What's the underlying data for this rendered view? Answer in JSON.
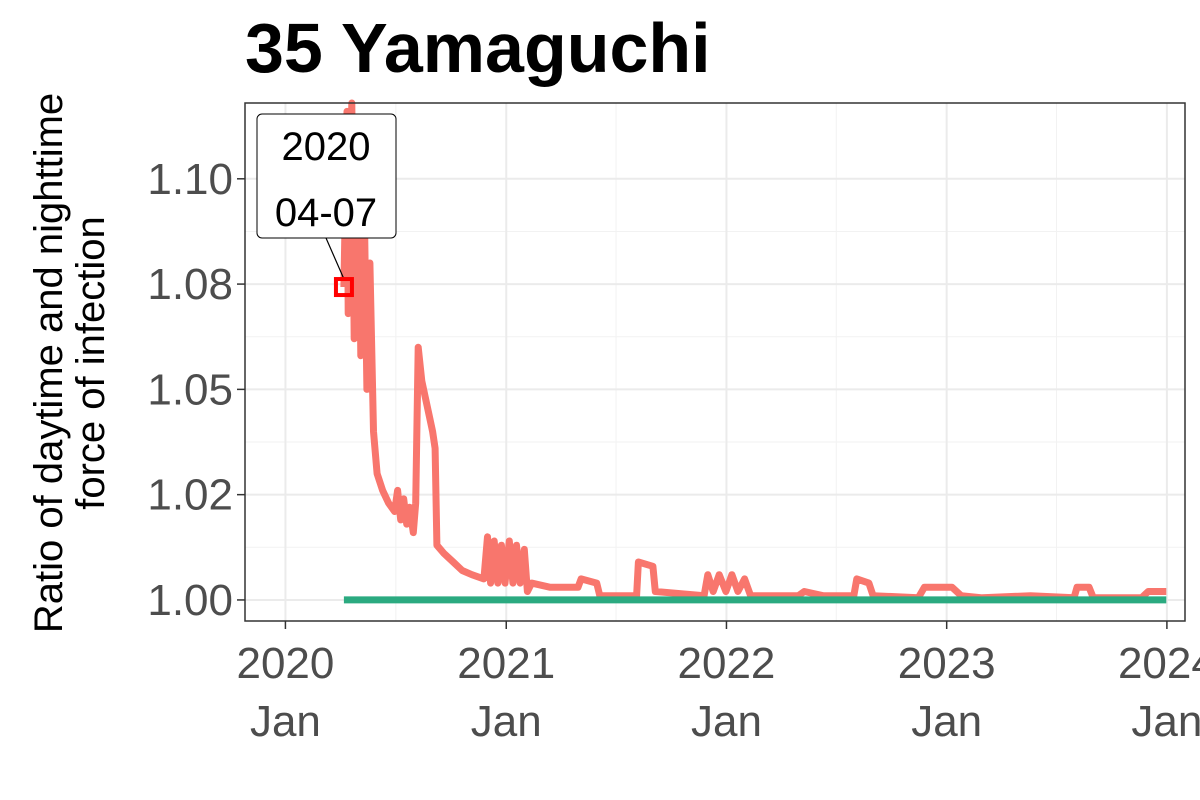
{
  "chart_data": {
    "type": "line",
    "title": "35 Yamaguchi",
    "ylabel_line1": "Ratio of daytime and nighttime",
    "ylabel_line2": "force of infection",
    "xlabel": "",
    "ylim": [
      0.995,
      1.118
    ],
    "xlim": [
      "2019-10-26",
      "2024-01-31"
    ],
    "y_ticks": [
      {
        "value": 1.0,
        "label": "1.00"
      },
      {
        "value": 1.025,
        "label": "1.02"
      },
      {
        "value": 1.05,
        "label": "1.05"
      },
      {
        "value": 1.075,
        "label": "1.08"
      },
      {
        "value": 1.1,
        "label": "1.10"
      }
    ],
    "x_ticks": [
      {
        "date": "2020-01-01",
        "year": "2020",
        "month": "Jan"
      },
      {
        "date": "2021-01-01",
        "year": "2021",
        "month": "Jan"
      },
      {
        "date": "2022-01-01",
        "year": "2022",
        "month": "Jan"
      },
      {
        "date": "2023-01-01",
        "year": "2023",
        "month": "Jan"
      },
      {
        "date": "2024-01-01",
        "year": "2024",
        "month": "Jan"
      }
    ],
    "grid": true,
    "legend": "none",
    "colors": {
      "ratio": "#F8766D",
      "baseline": "#2BAA80",
      "marker": "#FF0000"
    },
    "series": [
      {
        "color": "#F8766D",
        "points": [
          [
            "2020-04-07",
            1.0743
          ],
          [
            "2020-04-12",
            1.116
          ],
          [
            "2020-04-14",
            1.068
          ],
          [
            "2020-04-20",
            1.118
          ],
          [
            "2020-04-24",
            1.062
          ],
          [
            "2020-05-01",
            1.112
          ],
          [
            "2020-05-05",
            1.058
          ],
          [
            "2020-05-10",
            1.1
          ],
          [
            "2020-05-15",
            1.05
          ],
          [
            "2020-05-20",
            1.08
          ],
          [
            "2020-05-26",
            1.04
          ],
          [
            "2020-06-01",
            1.03
          ],
          [
            "2020-06-10",
            1.026
          ],
          [
            "2020-06-20",
            1.023
          ],
          [
            "2020-06-30",
            1.021
          ],
          [
            "2020-07-05",
            1.026
          ],
          [
            "2020-07-10",
            1.019
          ],
          [
            "2020-07-15",
            1.024
          ],
          [
            "2020-07-20",
            1.018
          ],
          [
            "2020-07-25",
            1.022
          ],
          [
            "2020-07-31",
            1.016
          ],
          [
            "2020-08-04",
            1.023
          ],
          [
            "2020-08-08",
            1.06
          ],
          [
            "2020-08-14",
            1.052
          ],
          [
            "2020-08-20",
            1.048
          ],
          [
            "2020-08-26",
            1.044
          ],
          [
            "2020-09-01",
            1.04
          ],
          [
            "2020-09-05",
            1.036
          ],
          [
            "2020-09-08",
            1.013
          ],
          [
            "2020-09-20",
            1.011
          ],
          [
            "2020-10-05",
            1.009
          ],
          [
            "2020-10-20",
            1.007
          ],
          [
            "2020-11-05",
            1.006
          ],
          [
            "2020-11-25",
            1.005
          ],
          [
            "2020-12-01",
            1.015
          ],
          [
            "2020-12-06",
            1.004
          ],
          [
            "2020-12-12",
            1.014
          ],
          [
            "2020-12-18",
            1.004
          ],
          [
            "2020-12-24",
            1.013
          ],
          [
            "2020-12-30",
            1.004
          ],
          [
            "2021-01-06",
            1.014
          ],
          [
            "2021-01-12",
            1.004
          ],
          [
            "2021-01-18",
            1.013
          ],
          [
            "2021-01-24",
            1.004
          ],
          [
            "2021-01-31",
            1.012
          ],
          [
            "2021-02-05",
            1.002
          ],
          [
            "2021-02-12",
            1.004
          ],
          [
            "2021-03-15",
            1.003
          ],
          [
            "2021-04-30",
            1.003
          ],
          [
            "2021-05-05",
            1.005
          ],
          [
            "2021-05-31",
            1.004
          ],
          [
            "2021-06-05",
            1.001
          ],
          [
            "2021-08-05",
            1.001
          ],
          [
            "2021-08-08",
            1.009
          ],
          [
            "2021-09-01",
            1.008
          ],
          [
            "2021-09-05",
            1.002
          ],
          [
            "2021-11-25",
            1.001
          ],
          [
            "2021-12-01",
            1.006
          ],
          [
            "2021-12-10",
            1.002
          ],
          [
            "2021-12-20",
            1.006
          ],
          [
            "2021-12-31",
            1.002
          ],
          [
            "2022-01-10",
            1.006
          ],
          [
            "2022-01-20",
            1.002
          ],
          [
            "2022-01-31",
            1.005
          ],
          [
            "2022-02-10",
            1.001
          ],
          [
            "2022-04-30",
            1.001
          ],
          [
            "2022-05-10",
            1.002
          ],
          [
            "2022-06-10",
            1.001
          ],
          [
            "2022-07-31",
            1.001
          ],
          [
            "2022-08-05",
            1.005
          ],
          [
            "2022-08-25",
            1.004
          ],
          [
            "2022-09-01",
            1.001
          ],
          [
            "2022-11-15",
            1.0005
          ],
          [
            "2022-11-25",
            1.003
          ],
          [
            "2022-12-10",
            1.003
          ],
          [
            "2023-01-10",
            1.003
          ],
          [
            "2023-01-25",
            1.001
          ],
          [
            "2023-03-01",
            1.0005
          ],
          [
            "2023-05-20",
            1.001
          ],
          [
            "2023-07-31",
            1.0005
          ],
          [
            "2023-08-05",
            1.003
          ],
          [
            "2023-08-25",
            1.003
          ],
          [
            "2023-09-01",
            1.0005
          ],
          [
            "2023-11-20",
            1.0005
          ],
          [
            "2023-12-01",
            1.002
          ],
          [
            "2023-12-31",
            1.002
          ]
        ]
      },
      {
        "color": "#2BAA80",
        "points": [
          [
            "2020-04-07",
            1.0
          ],
          [
            "2023-12-31",
            1.0
          ]
        ]
      }
    ],
    "annotation": {
      "date": "2020-04-07",
      "value": 1.0743,
      "line1": "2020",
      "line2": "04-07"
    }
  }
}
